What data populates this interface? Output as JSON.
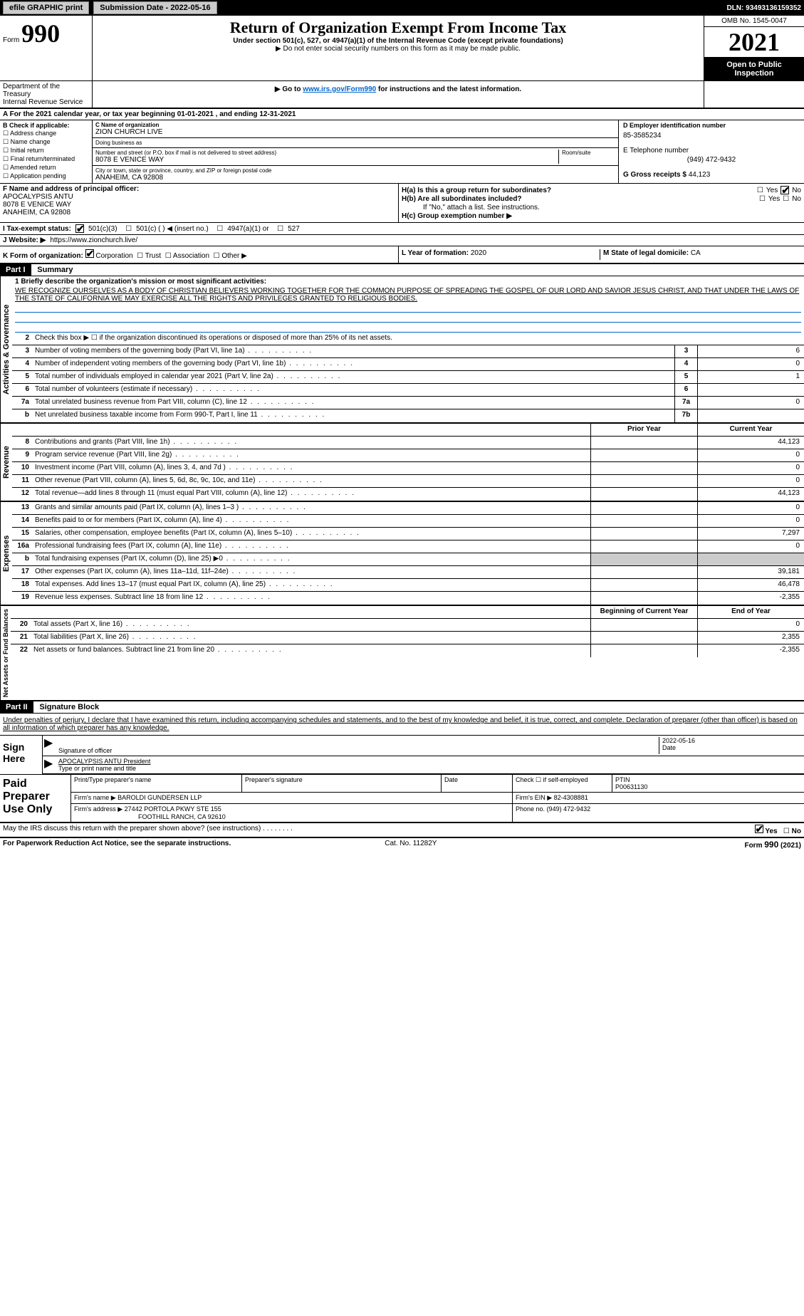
{
  "topbar": {
    "efile": "efile GRAPHIC print",
    "submission_label": "Submission Date - 2022-05-16",
    "dln": "DLN: 93493136159352"
  },
  "header": {
    "form_label": "Form",
    "form_num": "990",
    "title": "Return of Organization Exempt From Income Tax",
    "subtitle": "Under section 501(c), 527, or 4947(a)(1) of the Internal Revenue Code (except private foundations)",
    "note1": "▶ Do not enter social security numbers on this form as it may be made public.",
    "note2": "▶ Go to ",
    "note2_link": "www.irs.gov/Form990",
    "note2_rest": " for instructions and the latest information.",
    "omb": "OMB No. 1545-0047",
    "year": "2021",
    "otp": "Open to Public Inspection",
    "dept": "Department of the Treasury",
    "irs": "Internal Revenue Service"
  },
  "a_line": "A For the 2021 calendar year, or tax year beginning 01-01-2021     , and ending 12-31-2021",
  "b": {
    "label": "B Check if applicable:",
    "opts": [
      "Address change",
      "Name change",
      "Initial return",
      "Final return/terminated",
      "Amended return",
      "Application pending"
    ]
  },
  "c": {
    "name_label": "C Name of organization",
    "name": "ZION CHURCH LIVE",
    "dba_label": "Doing business as",
    "dba": "",
    "addr_label": "Number and street (or P.O. box if mail is not delivered to street address)",
    "room_label": "Room/suite",
    "addr": "8078 E VENICE WAY",
    "city_label": "City or town, state or province, country, and ZIP or foreign postal code",
    "city": "ANAHEIM, CA  92808"
  },
  "d": {
    "label": "D Employer identification number",
    "val": "85-3585234"
  },
  "e": {
    "label": "E Telephone number",
    "val": "(949) 472-9432"
  },
  "g": {
    "label": "G Gross receipts $",
    "val": "44,123"
  },
  "f": {
    "label": "F  Name and address of principal officer:",
    "name": "APOCALYPSIS ANTU",
    "addr1": "8078 E VENICE WAY",
    "addr2": "ANAHEIM, CA  92808"
  },
  "h": {
    "a_label": "H(a)  Is this a group return for subordinates?",
    "a_yes": "Yes",
    "a_no": "No",
    "b_label": "H(b)  Are all subordinates included?",
    "b_note": "If \"No,\" attach a list. See instructions.",
    "c_label": "H(c)  Group exemption number ▶"
  },
  "i": {
    "label": "I    Tax-exempt status:",
    "opt1": "501(c)(3)",
    "opt2": "501(c) (   ) ◀ (insert no.)",
    "opt3": "4947(a)(1) or",
    "opt4": "527"
  },
  "j": {
    "label": "J    Website: ▶",
    "val": "https://www.zionchurch.live/"
  },
  "k": {
    "label": "K Form of organization:",
    "opts": [
      "Corporation",
      "Trust",
      "Association",
      "Other ▶"
    ]
  },
  "l": {
    "label": "L Year of formation:",
    "val": "2020"
  },
  "m": {
    "label": "M State of legal domicile:",
    "val": "CA"
  },
  "part1": {
    "hdr": "Part I",
    "title": "Summary",
    "line1_label": "1  Briefly describe the organization's mission or most significant activities:",
    "mission": "WE RECOGNIZE OURSELVES AS A BODY OF CHRISTIAN BELIEVERS WORKING TOGETHER FOR THE COMMON PURPOSE OF SPREADING THE GOSPEL OF OUR LORD AND SAVIOR JESUS CHRIST, AND THAT UNDER THE LAWS OF THE STATE OF CALIFORNIA WE MAY EXERCISE ALL THE RIGHTS AND PRIVILEGES GRANTED TO RELIGIOUS BODIES.",
    "line2": "Check this box ▶ ☐  if the organization discontinued its operations or disposed of more than 25% of its net assets.",
    "ag_label": "Activities & Governance",
    "rev_label": "Revenue",
    "exp_label": "Expenses",
    "net_label": "Net Assets or Fund Balances",
    "rows_ag": [
      {
        "n": "3",
        "d": "Number of voting members of the governing body (Part VI, line 1a)",
        "rn": "3",
        "v": "6"
      },
      {
        "n": "4",
        "d": "Number of independent voting members of the governing body (Part VI, line 1b)",
        "rn": "4",
        "v": "0"
      },
      {
        "n": "5",
        "d": "Total number of individuals employed in calendar year 2021 (Part V, line 2a)",
        "rn": "5",
        "v": "1"
      },
      {
        "n": "6",
        "d": "Total number of volunteers (estimate if necessary)",
        "rn": "6",
        "v": ""
      },
      {
        "n": "7a",
        "d": "Total unrelated business revenue from Part VIII, column (C), line 12",
        "rn": "7a",
        "v": "0"
      },
      {
        "n": "b",
        "d": "Net unrelated business taxable income from Form 990-T, Part I, line 11",
        "rn": "7b",
        "v": ""
      }
    ],
    "col_prior": "Prior Year",
    "col_current": "Current Year",
    "rows_rev": [
      {
        "n": "8",
        "d": "Contributions and grants (Part VIII, line 1h)",
        "p": "",
        "c": "44,123"
      },
      {
        "n": "9",
        "d": "Program service revenue (Part VIII, line 2g)",
        "p": "",
        "c": "0"
      },
      {
        "n": "10",
        "d": "Investment income (Part VIII, column (A), lines 3, 4, and 7d )",
        "p": "",
        "c": "0"
      },
      {
        "n": "11",
        "d": "Other revenue (Part VIII, column (A), lines 5, 6d, 8c, 9c, 10c, and 11e)",
        "p": "",
        "c": "0"
      },
      {
        "n": "12",
        "d": "Total revenue—add lines 8 through 11 (must equal Part VIII, column (A), line 12)",
        "p": "",
        "c": "44,123"
      }
    ],
    "rows_exp": [
      {
        "n": "13",
        "d": "Grants and similar amounts paid (Part IX, column (A), lines 1–3 )",
        "p": "",
        "c": "0"
      },
      {
        "n": "14",
        "d": "Benefits paid to or for members (Part IX, column (A), line 4)",
        "p": "",
        "c": "0"
      },
      {
        "n": "15",
        "d": "Salaries, other compensation, employee benefits (Part IX, column (A), lines 5–10)",
        "p": "",
        "c": "7,297"
      },
      {
        "n": "16a",
        "d": "Professional fundraising fees (Part IX, column (A), line 11e)",
        "p": "",
        "c": "0"
      },
      {
        "n": "b",
        "d": "Total fundraising expenses (Part IX, column (D), line 25) ▶0",
        "p": "shaded",
        "c": "shaded"
      },
      {
        "n": "17",
        "d": "Other expenses (Part IX, column (A), lines 11a–11d, 11f–24e)",
        "p": "",
        "c": "39,181"
      },
      {
        "n": "18",
        "d": "Total expenses. Add lines 13–17 (must equal Part IX, column (A), line 25)",
        "p": "",
        "c": "46,478"
      },
      {
        "n": "19",
        "d": "Revenue less expenses. Subtract line 18 from line 12",
        "p": "",
        "c": "-2,355"
      }
    ],
    "col_begin": "Beginning of Current Year",
    "col_end": "End of Year",
    "rows_net": [
      {
        "n": "20",
        "d": "Total assets (Part X, line 16)",
        "p": "",
        "c": "0"
      },
      {
        "n": "21",
        "d": "Total liabilities (Part X, line 26)",
        "p": "",
        "c": "2,355"
      },
      {
        "n": "22",
        "d": "Net assets or fund balances. Subtract line 21 from line 20",
        "p": "",
        "c": "-2,355"
      }
    ]
  },
  "part2": {
    "hdr": "Part II",
    "title": "Signature Block",
    "decl": "Under penalties of perjury, I declare that I have examined this return, including accompanying schedules and statements, and to the best of my knowledge and belief, it is true, correct, and complete. Declaration of preparer (other than officer) is based on all information of which preparer has any knowledge.",
    "sign_here": "Sign Here",
    "sig_officer": "Signature of officer",
    "sig_date": "Date",
    "sig_date_val": "2022-05-16",
    "officer_name": "APOCALYPSIS ANTU  President",
    "type_name": "Type or print name and title",
    "paid_label": "Paid Preparer Use Only",
    "prep_name_label": "Print/Type preparer's name",
    "prep_sig_label": "Preparer's signature",
    "date_label": "Date",
    "check_label": "Check ☐ if self-employed",
    "ptin_label": "PTIN",
    "ptin": "P00631130",
    "firm_name_label": "Firm's name     ▶",
    "firm_name": "BAROLDI GUNDERSEN LLP",
    "firm_ein_label": "Firm's EIN ▶",
    "firm_ein": "82-4308881",
    "firm_addr_label": "Firm's address ▶",
    "firm_addr1": "27442 PORTOLA PKWY STE 155",
    "firm_addr2": "FOOTHILL RANCH, CA  92610",
    "phone_label": "Phone no.",
    "phone": "(949) 472-9432",
    "discuss": "May the IRS discuss this return with the preparer shown above? (see instructions)",
    "yes": "Yes",
    "no": "No"
  },
  "footer": {
    "pra": "For Paperwork Reduction Act Notice, see the separate instructions.",
    "cat": "Cat. No. 11282Y",
    "form": "Form 990 (2021)"
  }
}
